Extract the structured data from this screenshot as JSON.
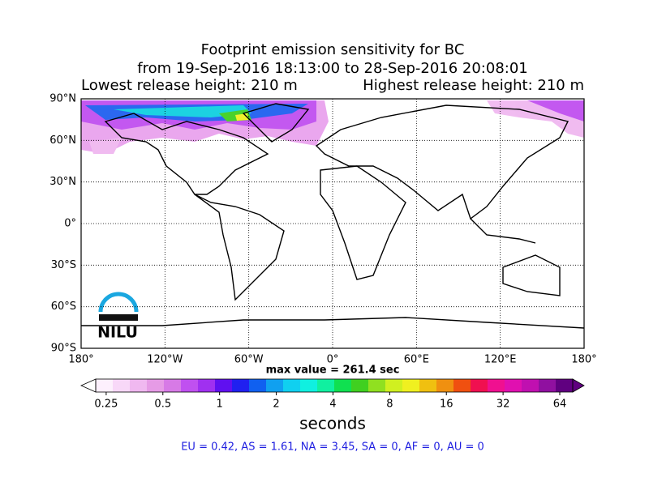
{
  "map": {
    "title": [
      "Footprint emission sensitivity for BC",
      "from 19-Sep-2016 18:13:00 to 28-Sep-2016 20:08:01"
    ],
    "subtitle_left": "Lowest release height: 210 m",
    "subtitle_right": "Highest release height: 210 m",
    "xlim": [
      -180,
      180
    ],
    "ylim": [
      -90,
      90
    ],
    "grid": true,
    "xticks": [
      {
        "value": -180,
        "label": "180°"
      },
      {
        "value": -120,
        "label": "120°W"
      },
      {
        "value": -60,
        "label": "60°W"
      },
      {
        "value": 0,
        "label": "0°"
      },
      {
        "value": 60,
        "label": "60°E"
      },
      {
        "value": 120,
        "label": "120°E"
      },
      {
        "value": 180,
        "label": "180°"
      }
    ],
    "yticks": [
      {
        "value": 90,
        "label": "90°N"
      },
      {
        "value": 60,
        "label": "60°N"
      },
      {
        "value": 30,
        "label": "30°N"
      },
      {
        "value": 0,
        "label": "0°"
      },
      {
        "value": -30,
        "label": "30°S"
      },
      {
        "value": -60,
        "label": "60°S"
      },
      {
        "value": -90,
        "label": "90°S"
      }
    ],
    "max_value": "max value = 261.4 sec",
    "logo": "NILU",
    "colorbar": {
      "scale": "log",
      "clim": [
        0.22,
        75
      ],
      "ticks": [
        0.25,
        0.5,
        1,
        2,
        4,
        8,
        16,
        32,
        64
      ],
      "label": "seconds",
      "colors": [
        "#fdf0fd",
        "#f8d8f8",
        "#f0b8f0",
        "#e69be6",
        "#d77ae6",
        "#c050f0",
        "#a030f0",
        "#6010f0",
        "#2020f0",
        "#1060f0",
        "#10a0f0",
        "#10d0f0",
        "#10f0e0",
        "#10f0a0",
        "#10e050",
        "#40d020",
        "#90e020",
        "#d0f020",
        "#f0f020",
        "#f0c010",
        "#f09010",
        "#f05010",
        "#f01050",
        "#f01090",
        "#e010b0",
        "#c010b0",
        "#9010a0",
        "#600080"
      ]
    },
    "region_stats": "EU = 0.42,  AS = 1.61,  NA = 3.45,  SA = 0,  AF = 0,  AU = 0"
  }
}
